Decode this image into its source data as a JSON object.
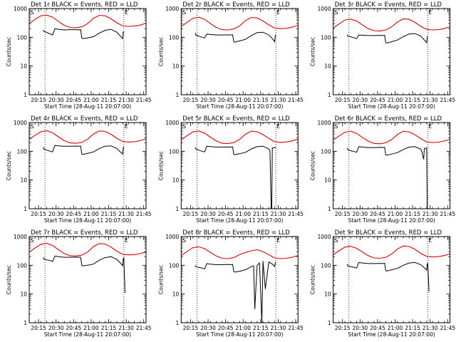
{
  "colors": {
    "events": "#000000",
    "lld": "#e00000",
    "axis": "#000000",
    "background": "#ffffff"
  },
  "x_tick_labels": [
    "20:15",
    "20:30",
    "20:45",
    "21:00",
    "21:15",
    "21:30",
    "21:45"
  ],
  "y_tick_labels": [
    "1",
    "10",
    "100",
    "1000"
  ],
  "ylabel": "Counts/sec",
  "xlabel": "Start Time (28-Aug-11 20:07:00)",
  "marker_labels": [
    "S",
    "E"
  ],
  "chart_data": [
    {
      "type": "line",
      "title": "Det 1r BLACK = Events, RED = LLD",
      "x_unit": "minutes after 20:07:00",
      "xlim": [
        0,
        100
      ],
      "ylim": [
        1,
        1000
      ],
      "yscale": "log",
      "vlines": [
        13.5,
        81
      ],
      "series": [
        {
          "name": "BLACK = Events",
          "color": "events",
          "x": [
            12,
            12.5,
            15,
            16,
            18,
            20,
            22,
            25,
            30,
            35,
            40,
            42,
            44,
            45,
            46,
            50,
            55,
            60,
            65,
            70,
            75,
            78,
            80,
            80.5,
            81
          ],
          "y": [
            180,
            160,
            150,
            140,
            130,
            120,
            200,
            190,
            180,
            185,
            185,
            180,
            185,
            95,
            90,
            95,
            105,
            140,
            175,
            190,
            150,
            110,
            90,
            150,
            160
          ]
        },
        {
          "name": "RED = LLD",
          "color": "lld",
          "x": [
            0,
            5,
            10,
            15,
            20,
            25,
            30,
            35,
            40,
            45,
            50,
            55,
            60,
            65,
            70,
            75,
            80,
            85,
            90,
            95,
            100
          ],
          "y": [
            300,
            420,
            560,
            590,
            500,
            360,
            260,
            220,
            215,
            230,
            300,
            460,
            580,
            560,
            440,
            320,
            250,
            240,
            245,
            265,
            310
          ]
        }
      ]
    },
    {
      "type": "line",
      "title": "Det 2r BLACK = Events, RED = LLD",
      "x_unit": "minutes after 20:07:00",
      "xlim": [
        0,
        100
      ],
      "ylim": [
        1,
        1000
      ],
      "yscale": "log",
      "vlines": [
        13.5,
        81
      ],
      "series": [
        {
          "name": "BLACK = Events",
          "color": "events",
          "x": [
            12,
            12.5,
            15,
            18,
            20,
            22,
            25,
            30,
            35,
            40,
            42,
            44,
            45,
            46,
            50,
            55,
            60,
            65,
            70,
            75,
            78,
            80,
            80.5,
            81
          ],
          "y": [
            140,
            120,
            110,
            100,
            95,
            130,
            125,
            120,
            120,
            122,
            120,
            122,
            70,
            68,
            75,
            85,
            115,
            145,
            150,
            120,
            90,
            70,
            110,
            120
          ]
        },
        {
          "name": "RED = LLD",
          "color": "lld",
          "x": [
            0,
            5,
            10,
            15,
            20,
            25,
            30,
            35,
            40,
            45,
            50,
            55,
            60,
            65,
            70,
            75,
            80,
            85,
            90,
            95,
            100
          ],
          "y": [
            240,
            330,
            460,
            500,
            420,
            300,
            220,
            185,
            180,
            195,
            250,
            380,
            490,
            470,
            370,
            270,
            210,
            200,
            205,
            225,
            260
          ]
        }
      ]
    },
    {
      "type": "line",
      "title": "Det 3r BLACK = Events, RED = LLD",
      "x_unit": "minutes after 20:07:00",
      "xlim": [
        0,
        100
      ],
      "ylim": [
        1,
        1000
      ],
      "yscale": "log",
      "vlines": [
        13.5,
        81
      ],
      "series": [
        {
          "name": "BLACK = Events",
          "color": "events",
          "x": [
            12,
            12.5,
            15,
            18,
            20,
            22,
            25,
            30,
            35,
            40,
            42,
            44,
            45,
            46,
            50,
            55,
            60,
            65,
            70,
            75,
            78,
            80,
            80.5,
            81
          ],
          "y": [
            125,
            110,
            105,
            95,
            90,
            120,
            118,
            115,
            115,
            117,
            115,
            117,
            65,
            63,
            70,
            80,
            105,
            130,
            135,
            110,
            80,
            65,
            100,
            110
          ]
        },
        {
          "name": "RED = LLD",
          "color": "lld",
          "x": [
            0,
            5,
            10,
            15,
            20,
            25,
            30,
            35,
            40,
            45,
            50,
            55,
            60,
            65,
            70,
            75,
            80,
            85,
            90,
            95,
            100
          ],
          "y": [
            210,
            290,
            400,
            430,
            370,
            270,
            200,
            170,
            165,
            180,
            230,
            340,
            440,
            420,
            330,
            240,
            190,
            180,
            185,
            200,
            235
          ]
        }
      ]
    },
    {
      "type": "line",
      "title": "Det 4r BLACK = Events, RED = LLD",
      "x_unit": "minutes after 20:07:00",
      "xlim": [
        0,
        100
      ],
      "ylim": [
        1,
        1000
      ],
      "yscale": "log",
      "vlines": [
        13.5,
        81
      ],
      "series": [
        {
          "name": "BLACK = Events",
          "color": "events",
          "x": [
            12,
            12.5,
            15,
            18,
            20,
            22,
            25,
            30,
            35,
            40,
            42,
            44,
            45,
            46,
            50,
            55,
            60,
            65,
            70,
            75,
            78,
            80,
            80.5,
            81
          ],
          "y": [
            140,
            120,
            110,
            100,
            95,
            160,
            155,
            150,
            150,
            152,
            150,
            152,
            80,
            78,
            85,
            95,
            125,
            150,
            155,
            125,
            95,
            80,
            130,
            140
          ]
        },
        {
          "name": "RED = LLD",
          "color": "lld",
          "x": [
            0,
            5,
            10,
            15,
            20,
            25,
            30,
            35,
            40,
            45,
            50,
            55,
            60,
            65,
            70,
            75,
            80,
            85,
            90,
            95,
            100
          ],
          "y": [
            260,
            360,
            480,
            520,
            440,
            320,
            235,
            195,
            190,
            205,
            265,
            400,
            510,
            490,
            390,
            285,
            220,
            210,
            215,
            235,
            270
          ]
        }
      ]
    },
    {
      "type": "line",
      "title": "Det 5r BLACK = Events, RED = LLD",
      "x_unit": "minutes after 20:07:00",
      "xlim": [
        0,
        100
      ],
      "ylim": [
        1,
        1000
      ],
      "yscale": "log",
      "vlines": [
        13.5,
        81
      ],
      "series": [
        {
          "name": "BLACK = Events",
          "color": "events",
          "x": [
            12,
            12.5,
            15,
            18,
            20,
            22,
            25,
            30,
            35,
            40,
            42,
            44,
            45,
            46,
            50,
            55,
            60,
            65,
            70,
            75,
            76,
            77,
            77.5,
            78,
            80,
            80.5,
            81
          ],
          "y": [
            135,
            120,
            110,
            100,
            95,
            150,
            145,
            140,
            140,
            142,
            140,
            142,
            78,
            76,
            82,
            92,
            120,
            145,
            150,
            120,
            100,
            1,
            1,
            130,
            135,
            135,
            130
          ]
        },
        {
          "name": "RED = LLD",
          "color": "lld",
          "x": [
            0,
            5,
            10,
            15,
            20,
            25,
            30,
            35,
            40,
            45,
            50,
            55,
            60,
            65,
            70,
            75,
            80,
            85,
            90,
            95,
            100
          ],
          "y": [
            250,
            350,
            470,
            510,
            430,
            310,
            230,
            190,
            185,
            200,
            260,
            390,
            500,
            480,
            380,
            280,
            215,
            205,
            210,
            230,
            265
          ]
        }
      ]
    },
    {
      "type": "line",
      "title": "Det 6r BLACK = Events, RED = LLD",
      "x_unit": "minutes after 20:07:00",
      "xlim": [
        0,
        100
      ],
      "ylim": [
        1,
        1000
      ],
      "yscale": "log",
      "vlines": [
        13.5,
        81
      ],
      "series": [
        {
          "name": "BLACK = Events",
          "color": "events",
          "x": [
            12,
            12.5,
            15,
            18,
            20,
            22,
            25,
            30,
            35,
            40,
            42,
            44,
            45,
            46,
            50,
            55,
            60,
            65,
            70,
            75,
            76,
            77,
            77.5,
            78,
            80,
            80.5,
            81
          ],
          "y": [
            130,
            115,
            105,
            98,
            92,
            145,
            140,
            135,
            135,
            137,
            135,
            137,
            75,
            73,
            80,
            90,
            115,
            140,
            145,
            118,
            95,
            60,
            55,
            125,
            130,
            1,
            1
          ]
        },
        {
          "name": "RED = LLD",
          "color": "lld",
          "x": [
            0,
            5,
            10,
            15,
            20,
            25,
            30,
            35,
            40,
            45,
            50,
            55,
            60,
            65,
            70,
            75,
            80,
            85,
            90,
            95,
            100
          ],
          "y": [
            245,
            340,
            460,
            500,
            420,
            305,
            225,
            188,
            182,
            198,
            255,
            385,
            495,
            475,
            375,
            275,
            212,
            202,
            208,
            228,
            262
          ]
        }
      ]
    },
    {
      "type": "line",
      "title": "Det 7r BLACK = Events, RED = LLD",
      "x_unit": "minutes after 20:07:00",
      "xlim": [
        0,
        100
      ],
      "ylim": [
        1,
        1000
      ],
      "yscale": "log",
      "vlines": [
        13.5,
        81
      ],
      "series": [
        {
          "name": "BLACK = Events",
          "color": "events",
          "x": [
            12,
            12.5,
            15,
            18,
            20,
            22,
            25,
            30,
            35,
            40,
            42,
            44,
            45,
            46,
            50,
            55,
            60,
            65,
            70,
            75,
            78,
            80,
            80.5,
            81,
            82
          ],
          "y": [
            190,
            165,
            155,
            145,
            135,
            210,
            200,
            190,
            190,
            192,
            190,
            192,
            100,
            95,
            100,
            110,
            150,
            185,
            200,
            160,
            120,
            95,
            170,
            180,
            11
          ]
        },
        {
          "name": "RED = LLD",
          "color": "lld",
          "x": [
            0,
            5,
            10,
            15,
            20,
            25,
            30,
            35,
            40,
            45,
            50,
            55,
            60,
            65,
            70,
            75,
            80,
            85,
            90,
            95,
            100
          ],
          "y": [
            290,
            400,
            540,
            580,
            490,
            350,
            255,
            215,
            210,
            225,
            290,
            450,
            570,
            550,
            430,
            310,
            240,
            230,
            235,
            255,
            290
          ]
        }
      ]
    },
    {
      "type": "line",
      "title": "Det 8r BLACK = Events, RED = LLD",
      "x_unit": "minutes after 20:07:00",
      "xlim": [
        0,
        100
      ],
      "ylim": [
        1,
        1000
      ],
      "yscale": "log",
      "vlines": [
        13.5,
        81
      ],
      "series": [
        {
          "name": "BLACK = Events",
          "color": "events",
          "x": [
            12,
            12.5,
            15,
            18,
            20,
            22,
            25,
            30,
            35,
            40,
            42,
            44,
            45,
            46,
            50,
            55,
            58,
            60,
            62,
            63,
            65,
            67,
            69,
            70,
            72,
            75,
            78,
            80,
            80.5,
            81
          ],
          "y": [
            100,
            90,
            85,
            80,
            75,
            115,
            110,
            105,
            105,
            107,
            105,
            107,
            60,
            58,
            62,
            70,
            80,
            90,
            95,
            3,
            100,
            120,
            1,
            140,
            15,
            130,
            110,
            90,
            120,
            130
          ]
        },
        {
          "name": "RED = LLD",
          "color": "lld",
          "x": [
            0,
            5,
            10,
            15,
            20,
            25,
            30,
            35,
            40,
            45,
            50,
            55,
            60,
            65,
            70,
            75,
            80,
            85,
            90,
            95,
            100
          ],
          "y": [
            220,
            300,
            410,
            440,
            380,
            280,
            210,
            175,
            170,
            185,
            235,
            280,
            320,
            350,
            300,
            230,
            180,
            170,
            175,
            190,
            220
          ]
        }
      ]
    },
    {
      "type": "line",
      "title": "Det 9r BLACK = Events, RED = LLD",
      "x_unit": "minutes after 20:07:00",
      "xlim": [
        0,
        100
      ],
      "ylim": [
        1,
        1000
      ],
      "yscale": "log",
      "vlines": [
        13.5,
        81
      ],
      "series": [
        {
          "name": "BLACK = Events",
          "color": "events",
          "x": [
            12,
            12.5,
            15,
            18,
            20,
            22,
            25,
            30,
            35,
            40,
            42,
            44,
            45,
            46,
            50,
            55,
            60,
            65,
            70,
            75,
            78,
            80,
            80.5,
            81,
            82
          ],
          "y": [
            110,
            95,
            90,
            85,
            80,
            125,
            120,
            115,
            115,
            117,
            115,
            117,
            65,
            63,
            70,
            78,
            100,
            120,
            125,
            105,
            82,
            68,
            110,
            115,
            12
          ]
        },
        {
          "name": "RED = LLD",
          "color": "lld",
          "x": [
            0,
            5,
            10,
            15,
            20,
            25,
            30,
            35,
            40,
            45,
            50,
            55,
            60,
            65,
            70,
            75,
            80,
            85,
            90,
            95,
            100
          ],
          "y": [
            230,
            320,
            430,
            460,
            390,
            290,
            215,
            180,
            175,
            190,
            245,
            370,
            470,
            450,
            360,
            260,
            205,
            195,
            200,
            218,
            250
          ]
        }
      ]
    }
  ]
}
